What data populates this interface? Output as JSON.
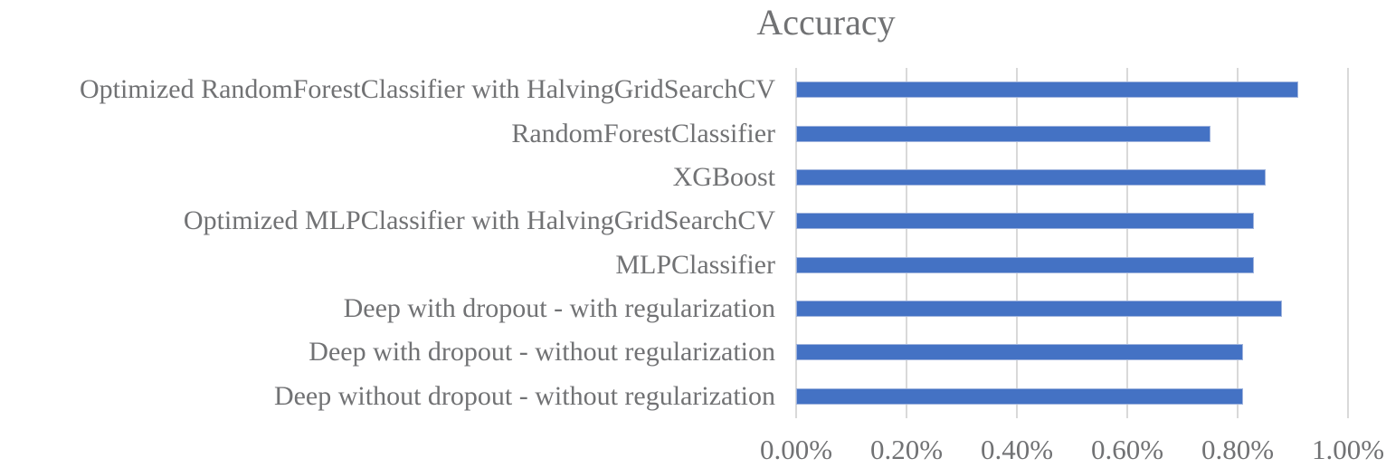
{
  "chart_data": {
    "type": "bar",
    "orientation": "horizontal",
    "title": "Accuracy",
    "categories": [
      "Optimized RandomForestClassifier with HalvingGridSearchCV",
      "RandomForestClassifier",
      "XGBoost",
      "Optimized MLPClassifier with HalvingGridSearchCV",
      "MLPClassifier",
      "Deep with dropout - with regularization",
      "Deep with dropout - without regularization",
      "Deep without dropout - without regularization"
    ],
    "values": [
      0.91,
      0.75,
      0.85,
      0.83,
      0.83,
      0.88,
      0.81,
      0.81
    ],
    "x_tick_labels": [
      "0.00%",
      "0.20%",
      "0.40%",
      "0.60%",
      "0.80%",
      "1.00%"
    ],
    "xlim": [
      0,
      1
    ],
    "xlabel": "",
    "ylabel": "",
    "grid": "vertical-only",
    "legend": "none",
    "bar_color": "#4472c4",
    "bar_border_color": "#9fb3dd",
    "gridline_color": "#d9d9d9",
    "text_color": "#717274"
  }
}
